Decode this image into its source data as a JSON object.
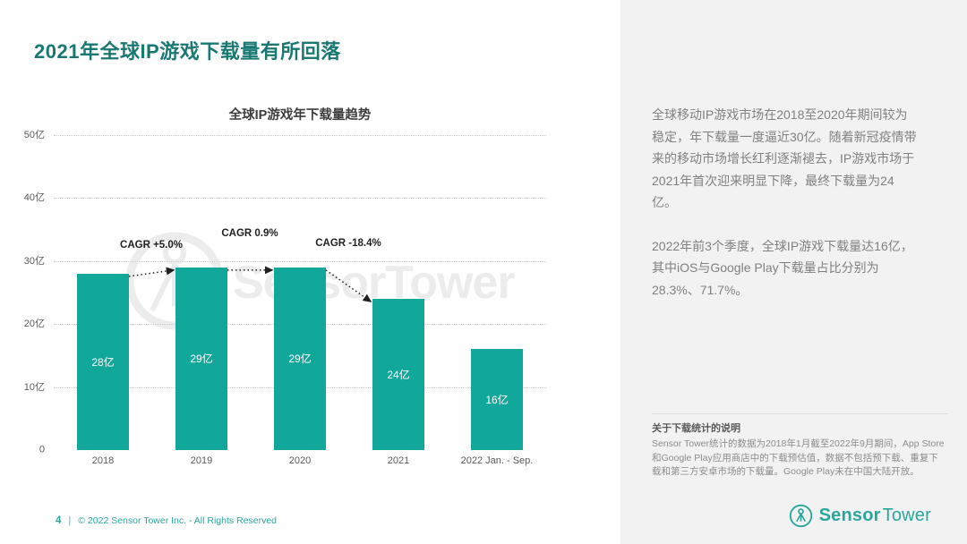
{
  "page": {
    "title": "2021年全球IP游戏下载量有所回落",
    "footer": {
      "page_number": "4",
      "separator": "|",
      "copyright": "© 2022 Sensor Tower Inc. - All Rights Reserved"
    }
  },
  "chart_data": {
    "type": "bar",
    "title": "全球IP游戏年下载量趋势",
    "categories": [
      "2018",
      "2019",
      "2020",
      "2021",
      "2022 Jan. - Sep."
    ],
    "values": [
      28,
      29,
      29,
      24,
      16
    ],
    "unit": "亿",
    "bar_labels": [
      "28亿",
      "29亿",
      "29亿",
      "24亿",
      "16亿"
    ],
    "ylim": [
      0,
      50
    ],
    "y_ticks": [
      {
        "label": "50亿",
        "value": 50
      },
      {
        "label": "40亿",
        "value": 40
      },
      {
        "label": "30亿",
        "value": 30
      },
      {
        "label": "20亿",
        "value": 20
      },
      {
        "label": "10亿",
        "value": 10
      },
      {
        "label": "0",
        "value": 0
      }
    ],
    "grid": "dotted-horizontal",
    "legend": "none",
    "bar_color": "#12A79B",
    "annotations": [
      {
        "label": "CAGR +5.0%",
        "from_index": 0,
        "to_index": 1,
        "label_dy": -34
      },
      {
        "label": "CAGR 0.9%",
        "from_index": 1,
        "to_index": 2,
        "label_dy": -47
      },
      {
        "label": "CAGR -18.4%",
        "from_index": 2,
        "to_index": 3,
        "label_dy": -36
      }
    ],
    "watermark": "SensorTower"
  },
  "sidebar": {
    "paragraphs": [
      "全球移动IP游戏市场在2018至2020年期间较为稳定，年下载量一度逼近30亿。随着新冠疫情带来的移动市场增长红利逐渐褪去，IP游戏市场于2021年首次迎来明显下降，最终下载量为24亿。",
      "2022年前3个季度，全球IP游戏下载量达16亿，其中iOS与Google Play下载量占比分别为28.3%、71.7%。"
    ],
    "footnote": {
      "heading": "关于下载统计的说明",
      "body": "Sensor Tower统计的数据为2018年1月截至2022年9月期间，App Store和Google Play应用商店中的下载预估值，数据不包括预下载、重复下载和第三方安卓市场的下载量。Google Play未在中国大陆开放。"
    },
    "logo": {
      "word_bold": "Sensor",
      "word_light": "Tower"
    }
  },
  "colors": {
    "accent_teal": "#12A79B",
    "title_teal": "#1A7873",
    "panel_bg": "#F2F2F2"
  }
}
